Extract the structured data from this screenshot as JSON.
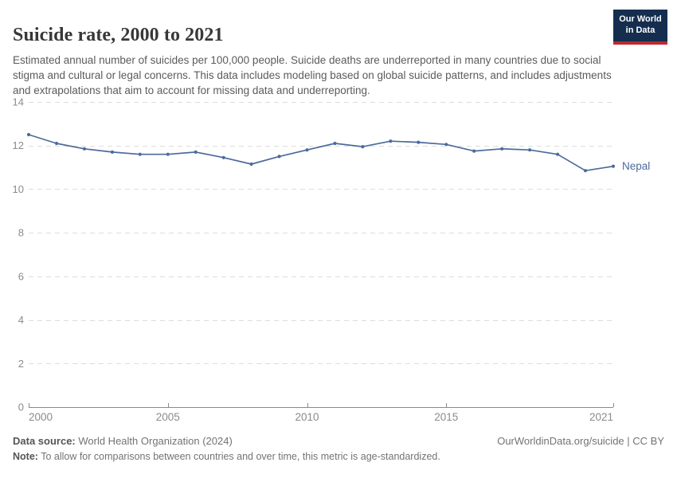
{
  "logo": {
    "line1": "Our World",
    "line2": "in Data",
    "bg_color": "#152e4f",
    "accent_color": "#bb2a30"
  },
  "header": {
    "title": "Suicide rate, 2000 to 2021",
    "subtitle": "Estimated annual number of suicides per 100,000 people. Suicide deaths are underreported in many countries due to social stigma and cultural or legal concerns. This data includes modeling based on global suicide patterns, and includes adjustments and extrapolations that aim to account for missing data and underreporting."
  },
  "chart_data": {
    "type": "line",
    "title": "Suicide rate, 2000 to 2021",
    "xlabel": "",
    "ylabel": "Suicides per 100,000 people",
    "x": [
      2000,
      2001,
      2002,
      2003,
      2004,
      2005,
      2006,
      2007,
      2008,
      2009,
      2010,
      2011,
      2012,
      2013,
      2014,
      2015,
      2016,
      2017,
      2018,
      2019,
      2020,
      2021
    ],
    "series": [
      {
        "name": "Nepal",
        "color": "#4c6a9c",
        "values": [
          12.5,
          12.1,
          11.85,
          11.7,
          11.6,
          11.6,
          11.7,
          11.45,
          11.15,
          11.5,
          11.8,
          12.1,
          11.95,
          12.2,
          12.15,
          12.05,
          11.75,
          11.85,
          11.8,
          11.6,
          10.85,
          11.05
        ]
      }
    ],
    "xlim": [
      2000,
      2021
    ],
    "ylim": [
      0,
      14
    ],
    "xticks": [
      2000,
      2005,
      2010,
      2015,
      2021
    ],
    "yticks": [
      0,
      2,
      4,
      6,
      8,
      10,
      12,
      14
    ],
    "grid": "horizontal-dashed",
    "legend": "line-end-label",
    "grid_color": "#dddddd",
    "axis_color": "#8a8a8a",
    "tick_label_color": "#8b8b8b"
  },
  "footer": {
    "datasource_label": "Data source:",
    "datasource_value": " World Health Organization (2024)",
    "link": "OurWorldinData.org/suicide | CC BY",
    "note_label": "Note:",
    "note_value": " To allow for comparisons between countries and over time, this metric is age-standardized."
  }
}
